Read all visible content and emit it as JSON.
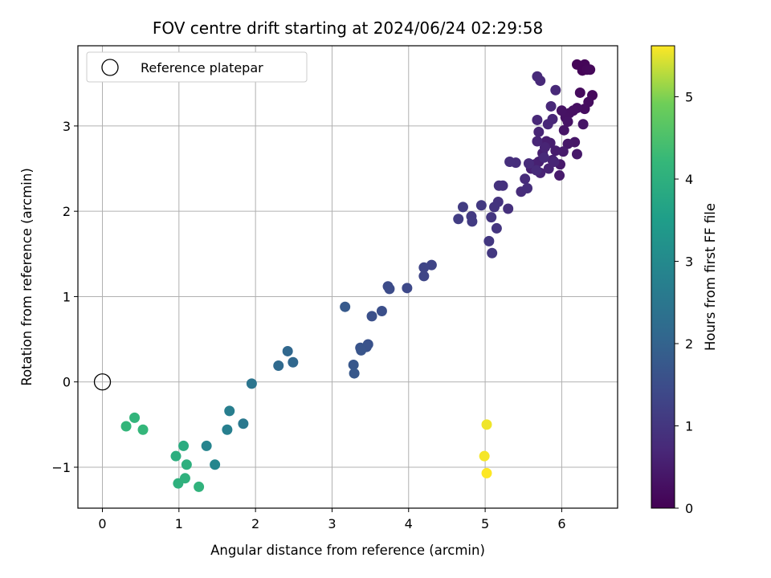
{
  "chart_data": {
    "type": "scatter",
    "title": "FOV centre drift starting at 2024/06/24 02:29:58",
    "xlabel": "Angular distance from reference (arcmin)",
    "ylabel": "Rotation from reference (arcmin)",
    "xlim": [
      -0.32,
      6.73
    ],
    "ylim": [
      -1.48,
      3.94
    ],
    "xticks": [
      0,
      1,
      2,
      3,
      4,
      5,
      6
    ],
    "xtick_labels": [
      "0",
      "1",
      "2",
      "3",
      "4",
      "5",
      "6"
    ],
    "yticks": [
      -1,
      0,
      1,
      2,
      3
    ],
    "ytick_labels": [
      "−1",
      "0",
      "1",
      "2",
      "3"
    ],
    "grid": true,
    "legend": {
      "placement": "top-left",
      "label": "Reference platepar"
    },
    "colormap": "viridis",
    "colorbar": {
      "label": "Hours from first FF file",
      "range": [
        0,
        5.62
      ],
      "ticks": [
        0,
        1,
        2,
        3,
        4,
        5
      ],
      "tick_labels": [
        "0",
        "1",
        "2",
        "3",
        "4",
        "5"
      ]
    },
    "reference_point": {
      "x": 0,
      "y": 0,
      "label": "Reference platepar"
    },
    "points": [
      {
        "x": 6.2,
        "y": 3.72,
        "c": 0.05
      },
      {
        "x": 6.3,
        "y": 3.72,
        "c": 0.08
      },
      {
        "x": 6.27,
        "y": 3.65,
        "c": 0.06
      },
      {
        "x": 6.33,
        "y": 3.66,
        "c": 0.1
      },
      {
        "x": 6.37,
        "y": 3.66,
        "c": 0.12
      },
      {
        "x": 6.4,
        "y": 3.36,
        "c": 0.15
      },
      {
        "x": 6.24,
        "y": 3.39,
        "c": 0.18
      },
      {
        "x": 6.35,
        "y": 3.28,
        "c": 0.2
      },
      {
        "x": 6.3,
        "y": 3.2,
        "c": 0.22
      },
      {
        "x": 6.2,
        "y": 3.21,
        "c": 0.25
      },
      {
        "x": 6.15,
        "y": 3.18,
        "c": 0.27
      },
      {
        "x": 6.1,
        "y": 3.15,
        "c": 0.28
      },
      {
        "x": 6.05,
        "y": 3.1,
        "c": 0.3
      },
      {
        "x": 6.0,
        "y": 3.18,
        "c": 0.32
      },
      {
        "x": 6.08,
        "y": 3.05,
        "c": 0.33
      },
      {
        "x": 6.03,
        "y": 2.95,
        "c": 0.35
      },
      {
        "x": 6.28,
        "y": 3.02,
        "c": 0.36
      },
      {
        "x": 6.17,
        "y": 2.81,
        "c": 0.38
      },
      {
        "x": 6.08,
        "y": 2.79,
        "c": 0.4
      },
      {
        "x": 6.2,
        "y": 2.67,
        "c": 0.42
      },
      {
        "x": 5.98,
        "y": 2.55,
        "c": 0.44
      },
      {
        "x": 5.97,
        "y": 2.42,
        "c": 0.46
      },
      {
        "x": 6.02,
        "y": 2.7,
        "c": 0.47
      },
      {
        "x": 5.92,
        "y": 2.71,
        "c": 0.48
      },
      {
        "x": 5.85,
        "y": 2.8,
        "c": 0.5
      },
      {
        "x": 5.8,
        "y": 2.82,
        "c": 0.52
      },
      {
        "x": 5.75,
        "y": 2.68,
        "c": 0.54
      },
      {
        "x": 5.88,
        "y": 2.6,
        "c": 0.55
      },
      {
        "x": 5.7,
        "y": 2.58,
        "c": 0.56
      },
      {
        "x": 5.65,
        "y": 2.55,
        "c": 0.58
      },
      {
        "x": 5.6,
        "y": 2.5,
        "c": 0.6
      },
      {
        "x": 5.72,
        "y": 2.45,
        "c": 0.62
      },
      {
        "x": 5.83,
        "y": 2.5,
        "c": 0.63
      },
      {
        "x": 5.9,
        "y": 2.58,
        "c": 0.64
      },
      {
        "x": 5.78,
        "y": 2.75,
        "c": 0.65
      },
      {
        "x": 5.68,
        "y": 2.82,
        "c": 0.66
      },
      {
        "x": 5.7,
        "y": 2.93,
        "c": 0.67
      },
      {
        "x": 5.82,
        "y": 3.02,
        "c": 0.68
      },
      {
        "x": 5.88,
        "y": 3.08,
        "c": 0.69
      },
      {
        "x": 5.68,
        "y": 3.07,
        "c": 0.7
      },
      {
        "x": 5.86,
        "y": 3.23,
        "c": 0.71
      },
      {
        "x": 5.92,
        "y": 3.42,
        "c": 0.72
      },
      {
        "x": 5.72,
        "y": 3.53,
        "c": 0.73
      },
      {
        "x": 5.68,
        "y": 3.58,
        "c": 0.74
      },
      {
        "x": 5.77,
        "y": 2.63,
        "c": 0.75
      },
      {
        "x": 5.67,
        "y": 2.48,
        "c": 0.76
      },
      {
        "x": 5.57,
        "y": 2.56,
        "c": 0.77
      },
      {
        "x": 5.52,
        "y": 2.38,
        "c": 0.78
      },
      {
        "x": 5.47,
        "y": 2.23,
        "c": 0.8
      },
      {
        "x": 5.55,
        "y": 2.27,
        "c": 0.82
      },
      {
        "x": 5.4,
        "y": 2.57,
        "c": 0.84
      },
      {
        "x": 5.32,
        "y": 2.58,
        "c": 0.86
      },
      {
        "x": 5.3,
        "y": 2.03,
        "c": 0.88
      },
      {
        "x": 5.23,
        "y": 2.3,
        "c": 0.9
      },
      {
        "x": 5.18,
        "y": 2.3,
        "c": 0.92
      },
      {
        "x": 5.17,
        "y": 2.11,
        "c": 0.94
      },
      {
        "x": 5.12,
        "y": 2.05,
        "c": 0.96
      },
      {
        "x": 5.15,
        "y": 1.8,
        "c": 0.98
      },
      {
        "x": 5.08,
        "y": 1.93,
        "c": 1.0
      },
      {
        "x": 5.05,
        "y": 1.65,
        "c": 1.02
      },
      {
        "x": 5.09,
        "y": 1.51,
        "c": 1.04
      },
      {
        "x": 4.95,
        "y": 2.07,
        "c": 1.06
      },
      {
        "x": 4.82,
        "y": 1.94,
        "c": 1.08
      },
      {
        "x": 4.83,
        "y": 1.88,
        "c": 1.1
      },
      {
        "x": 4.71,
        "y": 2.05,
        "c": 1.12
      },
      {
        "x": 4.65,
        "y": 1.91,
        "c": 1.14
      },
      {
        "x": 4.3,
        "y": 1.37,
        "c": 1.3
      },
      {
        "x": 4.2,
        "y": 1.34,
        "c": 1.32
      },
      {
        "x": 4.2,
        "y": 1.24,
        "c": 1.34
      },
      {
        "x": 3.98,
        "y": 1.1,
        "c": 1.4
      },
      {
        "x": 3.73,
        "y": 1.12,
        "c": 1.45
      },
      {
        "x": 3.75,
        "y": 1.09,
        "c": 1.47
      },
      {
        "x": 3.65,
        "y": 0.83,
        "c": 1.55
      },
      {
        "x": 3.52,
        "y": 0.77,
        "c": 1.57
      },
      {
        "x": 3.47,
        "y": 0.44,
        "c": 1.62
      },
      {
        "x": 3.45,
        "y": 0.41,
        "c": 1.64
      },
      {
        "x": 3.37,
        "y": 0.4,
        "c": 1.66
      },
      {
        "x": 3.38,
        "y": 0.37,
        "c": 1.68
      },
      {
        "x": 3.28,
        "y": 0.2,
        "c": 1.72
      },
      {
        "x": 3.29,
        "y": 0.1,
        "c": 1.74
      },
      {
        "x": 3.17,
        "y": 0.88,
        "c": 1.8
      },
      {
        "x": 2.49,
        "y": 0.23,
        "c": 2.1
      },
      {
        "x": 2.42,
        "y": 0.36,
        "c": 2.12
      },
      {
        "x": 2.3,
        "y": 0.19,
        "c": 2.15
      },
      {
        "x": 1.95,
        "y": -0.02,
        "c": 2.45
      },
      {
        "x": 1.84,
        "y": -0.49,
        "c": 2.55
      },
      {
        "x": 1.66,
        "y": -0.34,
        "c": 2.7
      },
      {
        "x": 1.63,
        "y": -0.56,
        "c": 2.72
      },
      {
        "x": 1.36,
        "y": -0.75,
        "c": 2.85
      },
      {
        "x": 1.47,
        "y": -0.97,
        "c": 2.9
      },
      {
        "x": 1.06,
        "y": -0.75,
        "c": 3.9
      },
      {
        "x": 0.96,
        "y": -0.87,
        "c": 3.95
      },
      {
        "x": 1.1,
        "y": -0.97,
        "c": 3.98
      },
      {
        "x": 0.99,
        "y": -1.19,
        "c": 4.02
      },
      {
        "x": 1.08,
        "y": -1.13,
        "c": 4.05
      },
      {
        "x": 1.26,
        "y": -1.23,
        "c": 4.08
      },
      {
        "x": 0.42,
        "y": -0.42,
        "c": 4.12
      },
      {
        "x": 0.31,
        "y": -0.52,
        "c": 4.15
      },
      {
        "x": 0.53,
        "y": -0.56,
        "c": 4.18
      },
      {
        "x": 5.02,
        "y": -0.5,
        "c": 5.55
      },
      {
        "x": 4.99,
        "y": -0.87,
        "c": 5.58
      },
      {
        "x": 5.02,
        "y": -1.07,
        "c": 5.62
      }
    ]
  }
}
